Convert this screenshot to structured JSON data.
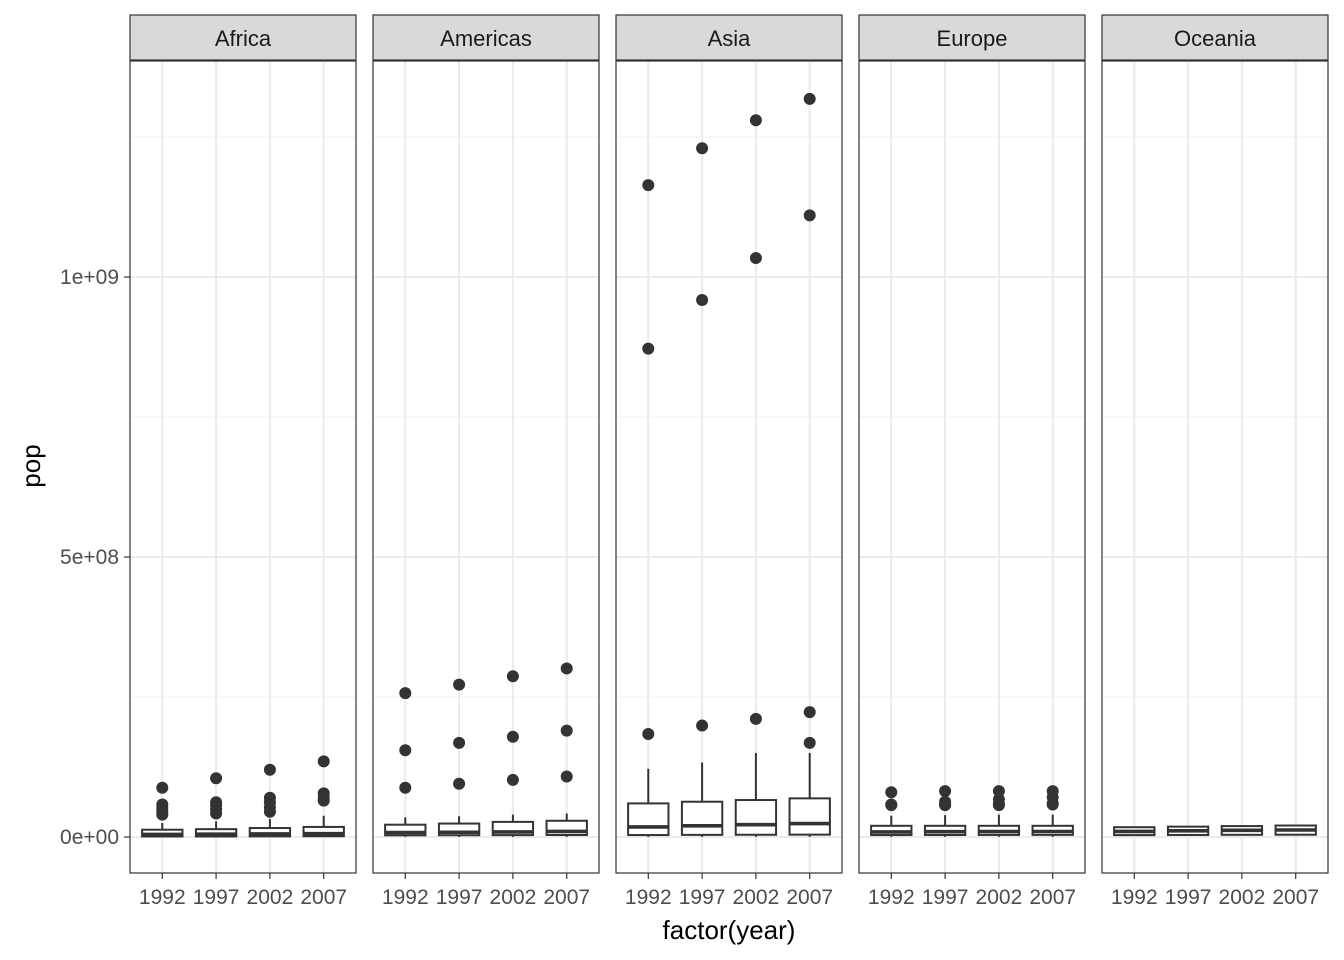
{
  "chart_data": {
    "type": "boxplot",
    "facet_by": "continent",
    "xlabel": "factor(year)",
    "ylabel": "pop",
    "x_categories": [
      "1992",
      "1997",
      "2002",
      "2007"
    ],
    "y_ticks": [
      {
        "value": 0,
        "label": "0e+00"
      },
      {
        "value": 500000000,
        "label": "5e+08"
      },
      {
        "value": 1000000000,
        "label": "1e+09"
      }
    ],
    "ylim": [
      -60000000,
      1380000000
    ],
    "grid": true,
    "panels": [
      {
        "name": "Africa",
        "boxes": [
          {
            "year": "1992",
            "q1": 1000000,
            "median": 4500000,
            "q3": 13000000,
            "whisker_low": 100000,
            "whisker_high": 25000000,
            "outliers": [
              40000000,
              45000000,
              52000000,
              58000000,
              88000000
            ]
          },
          {
            "year": "1997",
            "q1": 1000000,
            "median": 5000000,
            "q3": 14000000,
            "whisker_low": 100000,
            "whisker_high": 28000000,
            "outliers": [
              42000000,
              49000000,
              57000000,
              62000000,
              105000000
            ]
          },
          {
            "year": "2002",
            "q1": 1200000,
            "median": 5500000,
            "q3": 16000000,
            "whisker_low": 150000,
            "whisker_high": 32000000,
            "outliers": [
              45000000,
              53000000,
              62000000,
              70000000,
              120000000
            ]
          },
          {
            "year": "2007",
            "q1": 1400000,
            "median": 6000000,
            "q3": 18000000,
            "whisker_low": 200000,
            "whisker_high": 38000000,
            "outliers": [
              65000000,
              70000000,
              78000000,
              135000000
            ]
          }
        ]
      },
      {
        "name": "Americas",
        "boxes": [
          {
            "year": "1992",
            "q1": 3000000,
            "median": 8000000,
            "q3": 22000000,
            "whisker_low": 200000,
            "whisker_high": 35000000,
            "outliers": [
              88000000,
              155000000,
              257000000
            ]
          },
          {
            "year": "1997",
            "q1": 3200000,
            "median": 8500000,
            "q3": 24000000,
            "whisker_low": 200000,
            "whisker_high": 37000000,
            "outliers": [
              95000000,
              168000000,
              272000000
            ]
          },
          {
            "year": "2002",
            "q1": 3400000,
            "median": 9000000,
            "q3": 27000000,
            "whisker_low": 200000,
            "whisker_high": 40000000,
            "outliers": [
              102000000,
              179000000,
              287000000
            ]
          },
          {
            "year": "2007",
            "q1": 3600000,
            "median": 10000000,
            "q3": 29000000,
            "whisker_low": 200000,
            "whisker_high": 42000000,
            "outliers": [
              108000000,
              190000000,
              301000000
            ]
          }
        ]
      },
      {
        "name": "Asia",
        "boxes": [
          {
            "year": "1992",
            "q1": 3500000,
            "median": 18000000,
            "q3": 60000000,
            "whisker_low": 200000,
            "whisker_high": 122000000,
            "outliers": [
              184000000,
              872000000,
              1164000000
            ]
          },
          {
            "year": "1997",
            "q1": 3800000,
            "median": 20000000,
            "q3": 63000000,
            "whisker_low": 200000,
            "whisker_high": 133000000,
            "outliers": [
              199000000,
              959000000,
              1230000000
            ]
          },
          {
            "year": "2002",
            "q1": 4000000,
            "median": 22000000,
            "q3": 66000000,
            "whisker_low": 250000,
            "whisker_high": 150000000,
            "outliers": [
              211000000,
              1034000000,
              1280000000
            ]
          },
          {
            "year": "2007",
            "q1": 4200000,
            "median": 24000000,
            "q3": 69000000,
            "whisker_low": 300000,
            "whisker_high": 150000000,
            "outliers": [
              168000000,
              223000000,
              1110000000,
              1318000000
            ]
          }
        ]
      },
      {
        "name": "Europe",
        "boxes": [
          {
            "year": "1992",
            "q1": 3500000,
            "median": 9000000,
            "q3": 20000000,
            "whisker_low": 260000,
            "whisker_high": 38000000,
            "outliers": [
              57000000,
              58000000,
              80000000
            ]
          },
          {
            "year": "1997",
            "q1": 3600000,
            "median": 9500000,
            "q3": 20000000,
            "whisker_low": 270000,
            "whisker_high": 39000000,
            "outliers": [
              57000000,
              58000000,
              63000000,
              82000000
            ]
          },
          {
            "year": "2002",
            "q1": 3700000,
            "median": 9700000,
            "q3": 20000000,
            "whisker_low": 280000,
            "whisker_high": 40000000,
            "outliers": [
              57000000,
              59000000,
              67000000,
              82000000
            ]
          },
          {
            "year": "2007",
            "q1": 3800000,
            "median": 9800000,
            "q3": 20000000,
            "whisker_low": 300000,
            "whisker_high": 40000000,
            "outliers": [
              58000000,
              60000000,
              71000000,
              82000000
            ]
          }
        ]
      },
      {
        "name": "Oceania",
        "boxes": [
          {
            "year": "1992",
            "q1": 3400000,
            "median": 10000000,
            "q3": 17500000,
            "whisker_low": 3400000,
            "whisker_high": 17500000,
            "outliers": []
          },
          {
            "year": "1997",
            "q1": 3600000,
            "median": 11000000,
            "q3": 18500000,
            "whisker_low": 3600000,
            "whisker_high": 18500000,
            "outliers": []
          },
          {
            "year": "2002",
            "q1": 3900000,
            "median": 12000000,
            "q3": 19500000,
            "whisker_low": 3900000,
            "whisker_high": 19500000,
            "outliers": []
          },
          {
            "year": "2007",
            "q1": 4100000,
            "median": 12500000,
            "q3": 20500000,
            "whisker_low": 4100000,
            "whisker_high": 20500000,
            "outliers": []
          }
        ]
      }
    ]
  }
}
